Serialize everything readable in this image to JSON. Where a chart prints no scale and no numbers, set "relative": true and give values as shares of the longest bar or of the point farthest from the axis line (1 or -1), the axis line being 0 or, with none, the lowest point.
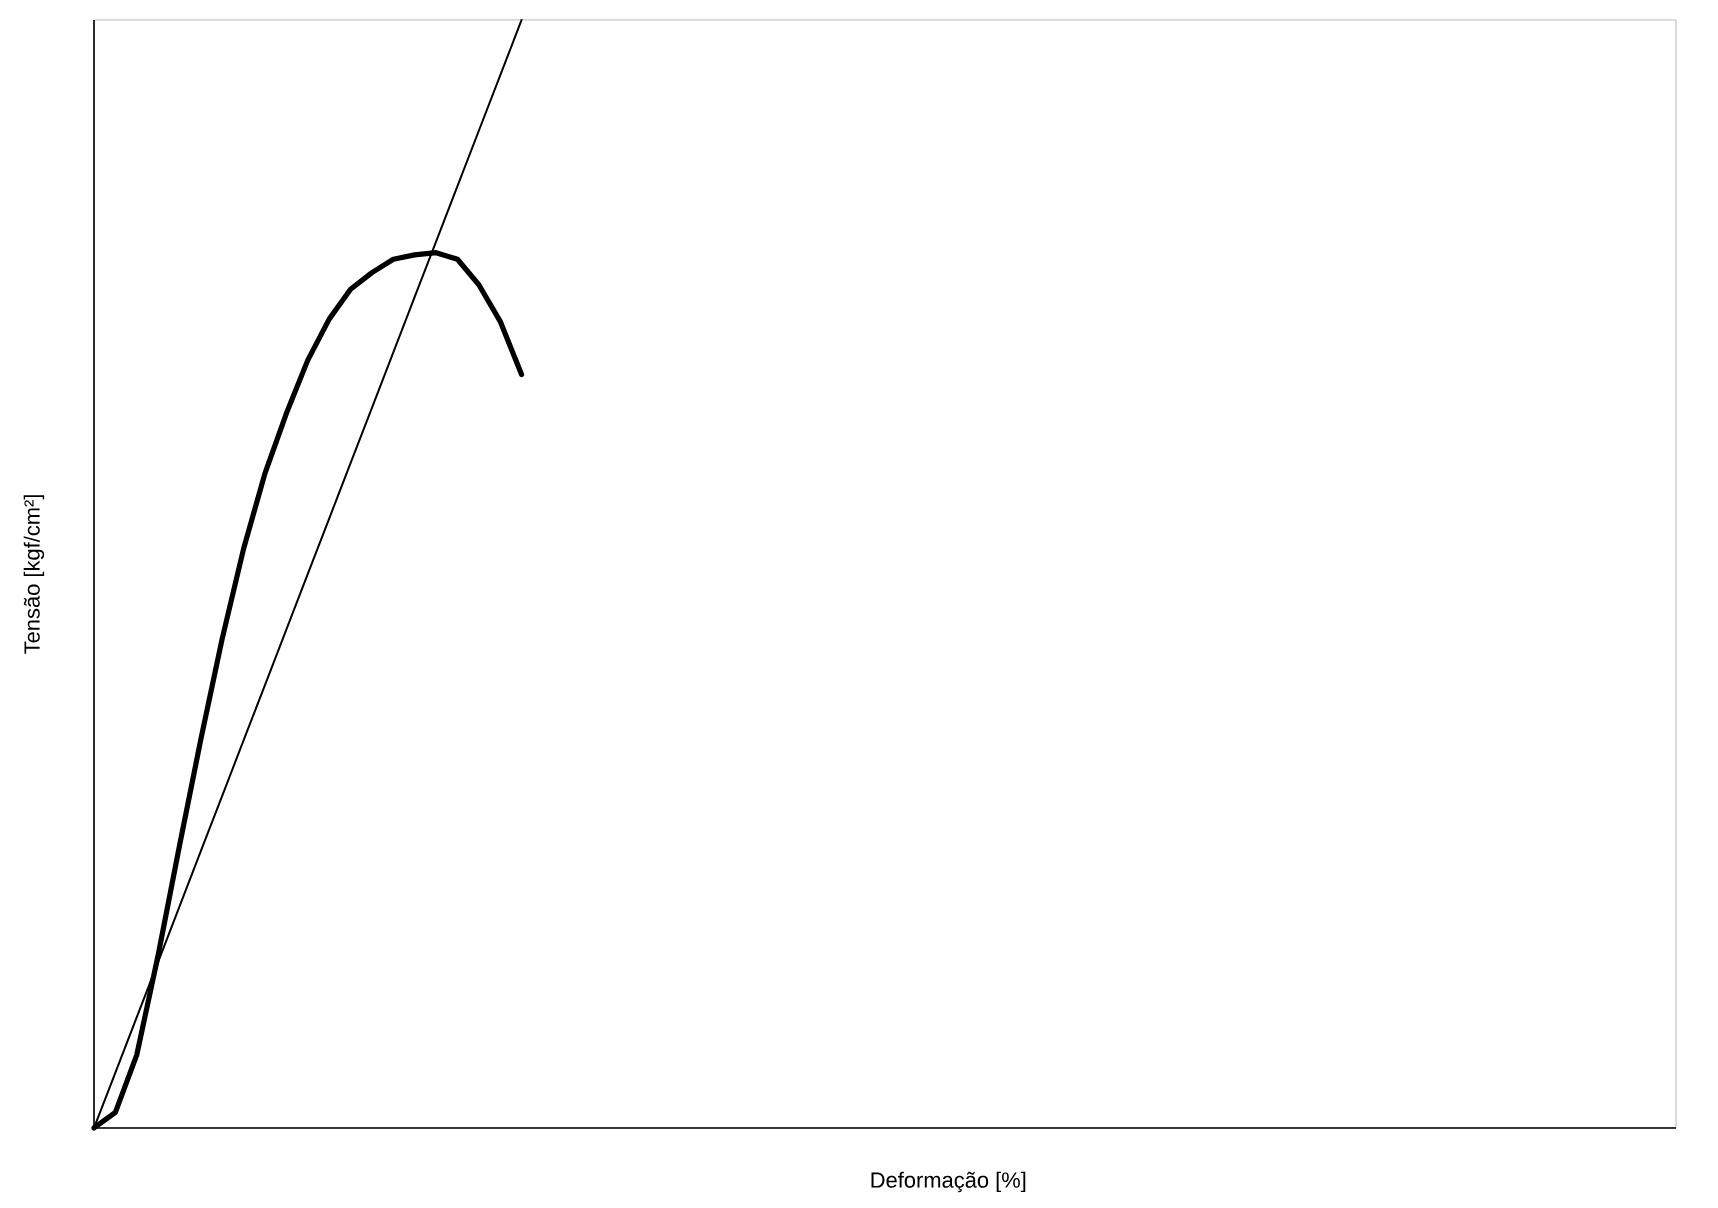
{
  "chart_data": {
    "type": "line",
    "relative": true,
    "xlabel": "Deformação [%]",
    "ylabel": "Tensão [kgf/cm²]",
    "categories": [
      null,
      null,
      null,
      null,
      null,
      null,
      null,
      null,
      null,
      null,
      null,
      null,
      null,
      null,
      null,
      null,
      null,
      null,
      null,
      null,
      null,
      null,
      null,
      null,
      null,
      null,
      null,
      null,
      null,
      null,
      null,
      null,
      null,
      null,
      null,
      null,
      null,
      null,
      null,
      null,
      null,
      null,
      null,
      null,
      null,
      null,
      null,
      null,
      null,
      null,
      null,
      null,
      null,
      null,
      null,
      null,
      null,
      null,
      null,
      null,
      null,
      null,
      null,
      null,
      null,
      null,
      null,
      null,
      null,
      null,
      null,
      null,
      null,
      null,
      null
    ],
    "marker": "none",
    "line_style": "solid",
    "series": [
      {
        "color": "#000000",
        "values": [
          0,
          0.014,
          0.066,
          0.156,
          0.255,
          0.351,
          0.442,
          0.523,
          0.591,
          0.645,
          0.693,
          0.73,
          0.757,
          0.772,
          0.784,
          0.788,
          0.79,
          0.784,
          0.761,
          0.728,
          0.68,
          null,
          null,
          null,
          null,
          null,
          null,
          null,
          null,
          null,
          null,
          null,
          null,
          null,
          null,
          null,
          null,
          null,
          null,
          null,
          null,
          null,
          null,
          null,
          null,
          null,
          null,
          null,
          null,
          null,
          null,
          null,
          null,
          null,
          null,
          null,
          null,
          null,
          null,
          null,
          null,
          null,
          null,
          null,
          null,
          null,
          null,
          null,
          null,
          null,
          null,
          null,
          null,
          null,
          null
        ]
      },
      {
        "color": "#000000",
        "values": [
          0,
          0.05,
          0.1,
          0.15,
          0.2,
          0.25,
          0.3,
          0.35,
          0.4,
          0.45,
          0.5,
          0.55,
          0.6,
          0.65,
          0.7,
          0.75,
          0.8,
          0.85,
          0.9,
          0.95,
          1,
          null,
          null,
          null,
          null,
          null,
          null,
          null,
          null,
          null,
          null,
          null,
          null,
          null,
          null,
          null,
          null,
          null,
          null,
          null,
          null,
          null,
          null,
          null,
          null,
          null,
          null,
          null,
          null,
          null,
          null,
          null,
          null,
          null,
          null,
          null,
          null,
          null,
          null,
          null,
          null,
          null,
          null,
          null,
          null,
          null,
          null,
          null,
          null,
          null,
          null,
          null,
          null,
          null,
          null
        ]
      }
    ]
  }
}
